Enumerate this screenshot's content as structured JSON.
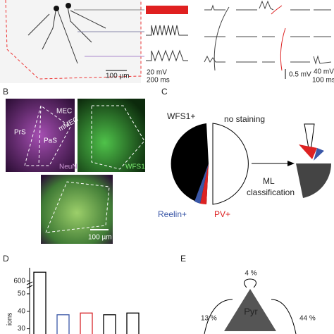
{
  "panel_a": {
    "scale_image": "100 µm",
    "scale_trace_v": "20 mV",
    "scale_trace_t": "200 ms",
    "scale_small_v": "0.5 mV",
    "scale_big_v": "40 mV",
    "scale_small_t": "100 ms"
  },
  "panel_b": {
    "label": "B",
    "regions": [
      "MEC",
      "PrS",
      "PaS",
      "mMEC"
    ],
    "stain_neun": "NeuN",
    "stain_wfs1": "WFS1",
    "scale": "100 µm"
  },
  "panel_c": {
    "label": "C",
    "wfs1": "WFS1+",
    "no_staining": "no staining",
    "ml": "ML",
    "classification": "classification",
    "reelin": "Reelin+",
    "pv": "PV+"
  },
  "panel_d": {
    "label": "D",
    "axis_label": "ions",
    "yticks": [
      600,
      50,
      40,
      30
    ],
    "ylim_lower": [
      27,
      52
    ],
    "ylim_upper": [
      595,
      630
    ],
    "values": [
      620,
      38,
      39,
      38,
      39
    ],
    "colors": [
      "#000000",
      "#3a57a7",
      "#d7262b",
      "#000000",
      "#000000"
    ]
  },
  "panel_e": {
    "label": "E",
    "node": "Pyr",
    "self": "4 %",
    "left": "13 %",
    "right": "44 %"
  }
}
